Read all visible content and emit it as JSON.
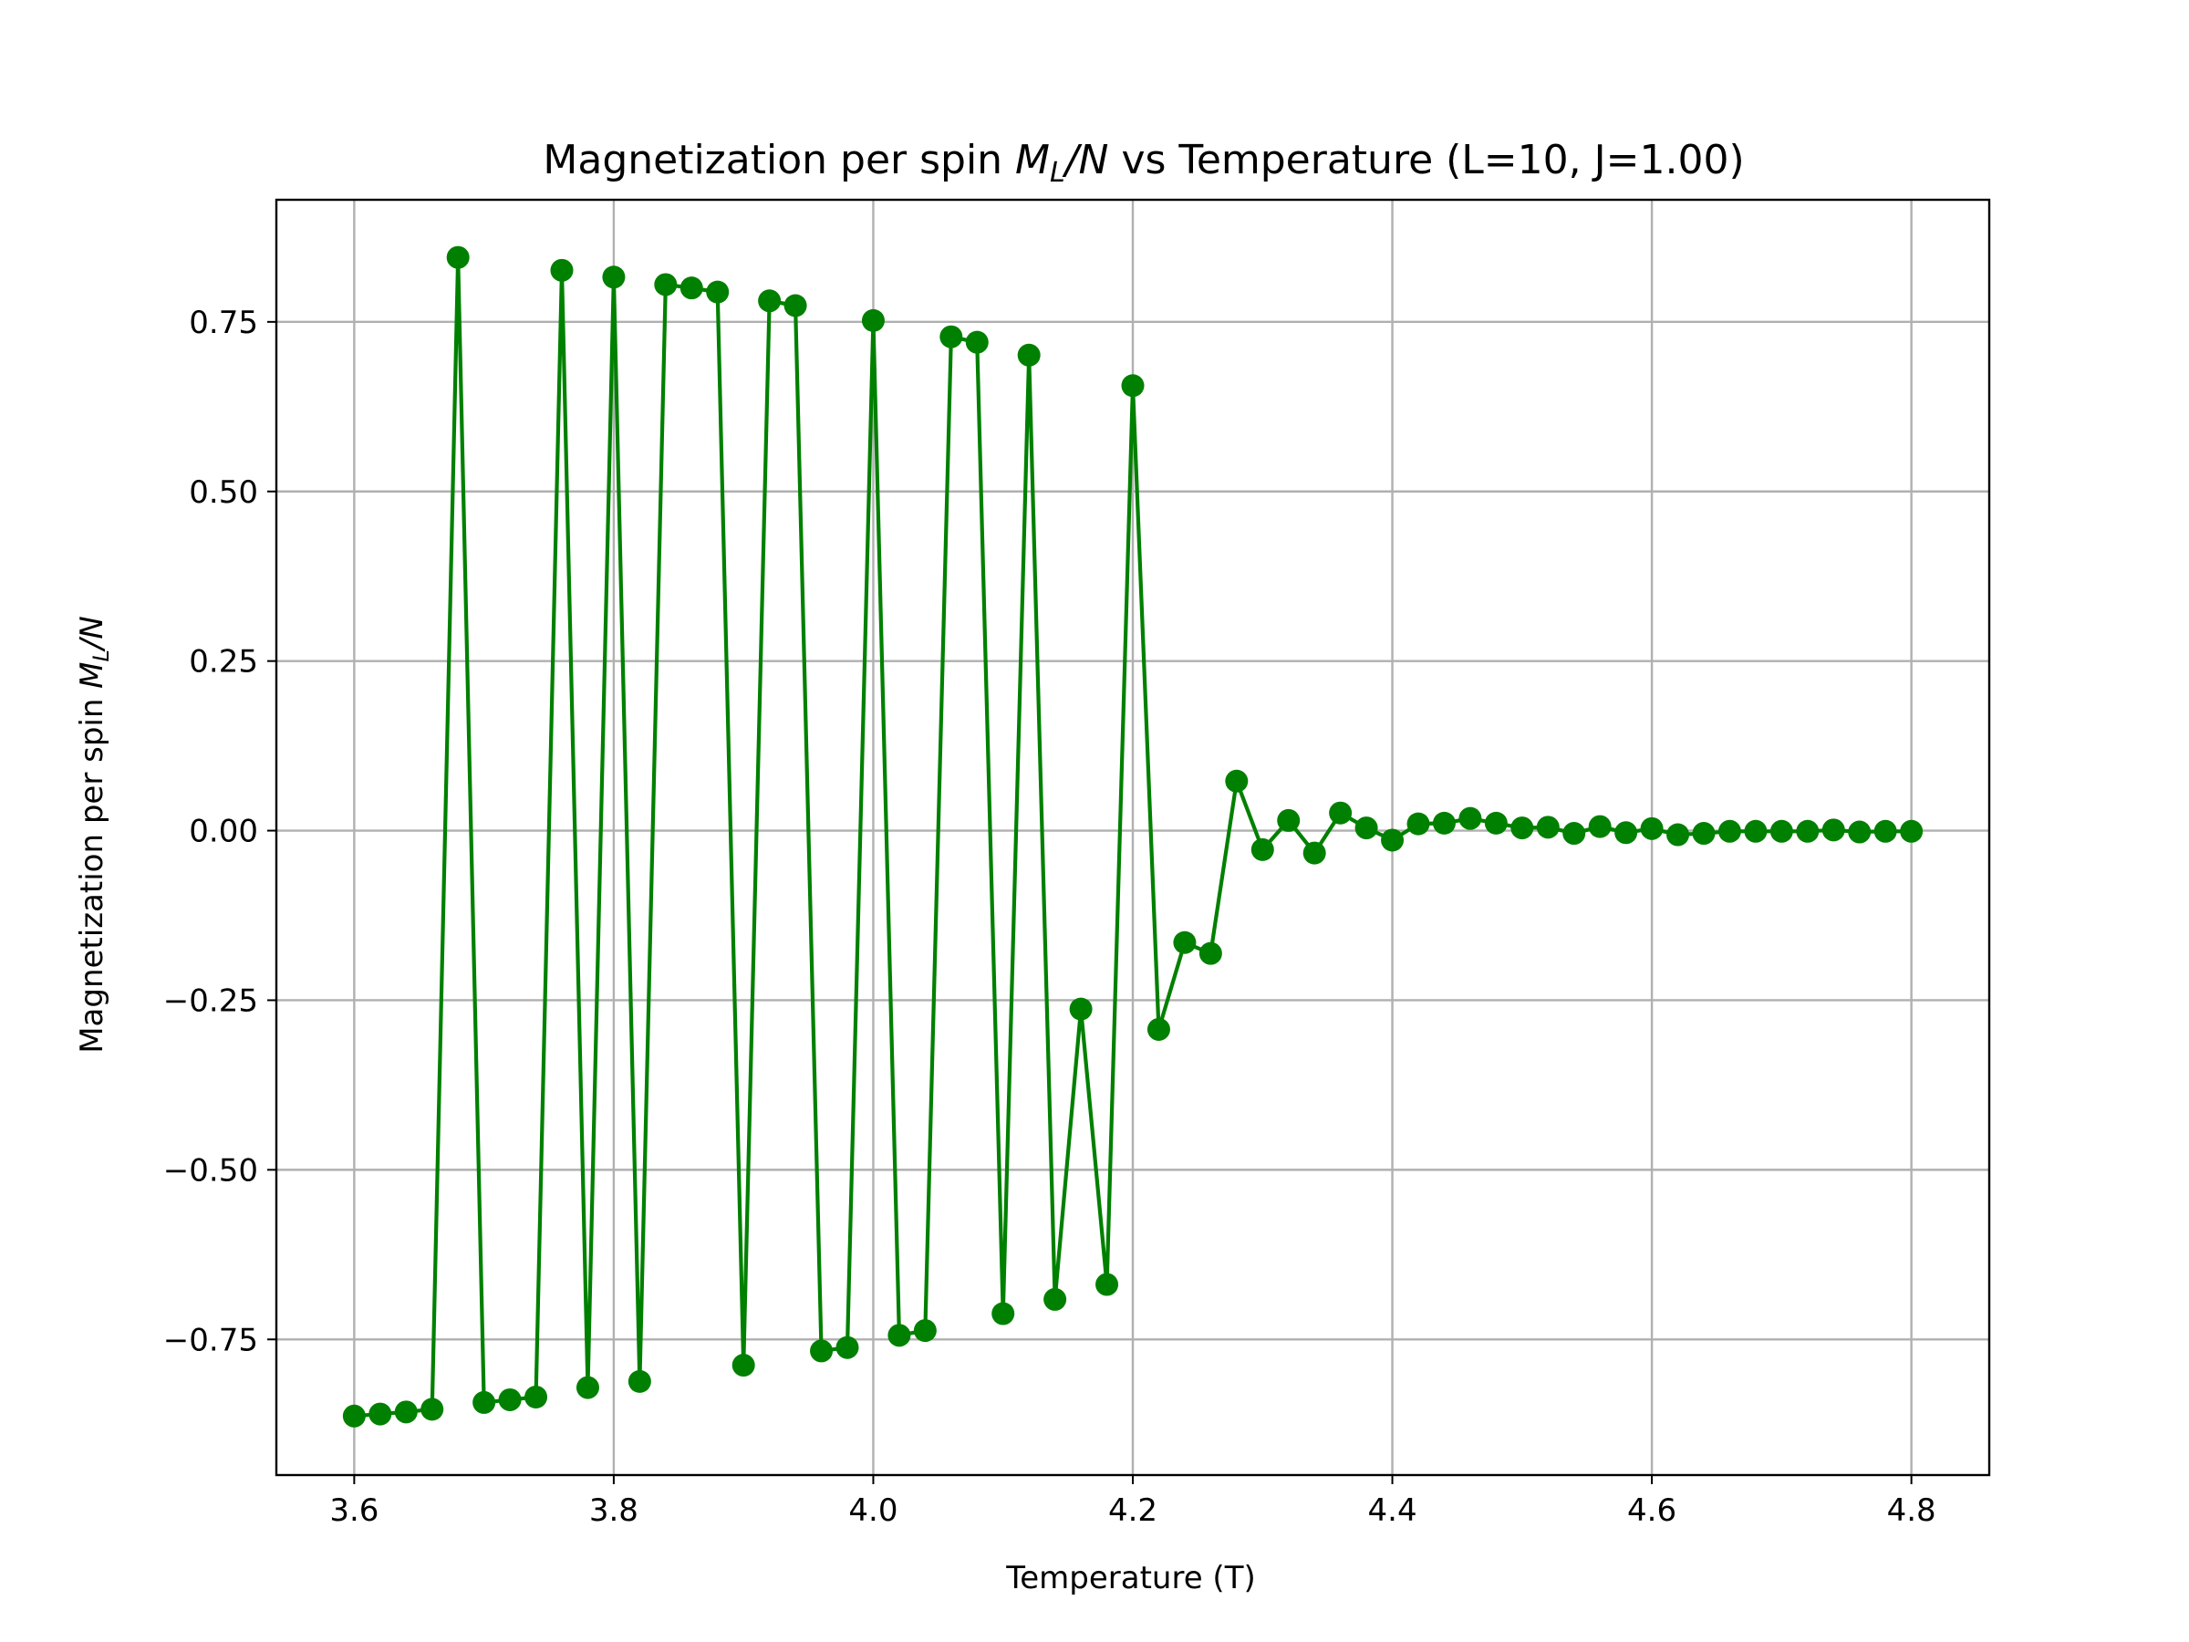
{
  "chart_data": {
    "type": "line",
    "title": "Magnetization per spin M_L/N vs Temperature (L=10, J=1.00)",
    "title_parts": {
      "prefix": "Magnetization per spin ",
      "math_M": "M",
      "math_sub": "L",
      "math_rest": "/N",
      "suffix": " vs Temperature (L=10, J=1.00)"
    },
    "xlabel": "Temperature (T)",
    "ylabel": "Magnetization per spin M_L/N",
    "ylabel_parts": {
      "prefix": "Magnetization per spin ",
      "math_M": "M",
      "math_sub": "L",
      "math_rest": "/N"
    },
    "xlim": [
      3.54,
      4.86
    ],
    "ylim": [
      -0.95,
      0.93
    ],
    "xticks": [
      3.6,
      3.8,
      4.0,
      4.2,
      4.4,
      4.6,
      4.8
    ],
    "xtick_labels": [
      "3.6",
      "3.8",
      "4.0",
      "4.2",
      "4.4",
      "4.6",
      "4.8"
    ],
    "yticks": [
      -0.75,
      -0.5,
      -0.25,
      0.0,
      0.25,
      0.5,
      0.75
    ],
    "ytick_labels": [
      "−0.75",
      "−0.50",
      "−0.25",
      "0.00",
      "0.25",
      "0.50",
      "0.75"
    ],
    "grid": true,
    "color": "#008000",
    "marker": "circle",
    "series": [
      {
        "x": [
          3.6,
          3.62,
          3.64,
          3.66,
          3.68,
          3.7,
          3.72,
          3.74,
          3.76,
          3.78,
          3.8,
          3.82,
          3.84,
          3.86,
          3.88,
          3.9,
          3.92,
          3.94,
          3.96,
          3.98,
          4.0,
          4.02,
          4.04,
          4.06,
          4.08,
          4.1,
          4.12,
          4.14,
          4.16,
          4.18,
          4.2,
          4.22,
          4.24,
          4.26,
          4.28,
          4.3,
          4.32,
          4.34,
          4.36,
          4.38,
          4.4,
          4.42,
          4.44,
          4.46,
          4.48,
          4.5,
          4.52,
          4.54,
          4.56,
          4.58,
          4.6,
          4.62,
          4.64,
          4.66,
          4.68,
          4.7,
          4.72,
          4.74,
          4.76,
          4.78,
          4.8
        ],
        "y": [
          -0.863,
          -0.86,
          -0.857,
          -0.853,
          0.845,
          -0.843,
          -0.839,
          -0.835,
          0.826,
          -0.821,
          0.816,
          -0.812,
          0.805,
          0.8,
          0.794,
          -0.788,
          0.781,
          0.774,
          -0.767,
          -0.762,
          0.752,
          -0.744,
          -0.737,
          0.728,
          0.72,
          -0.712,
          0.701,
          -0.691,
          -0.263,
          -0.669,
          0.656,
          -0.293,
          -0.165,
          -0.181,
          0.073,
          -0.028,
          0.015,
          -0.033,
          0.026,
          0.004,
          -0.014,
          0.01,
          0.011,
          0.018,
          0.011,
          0.004,
          0.005,
          -0.004,
          0.006,
          -0.003,
          0.003,
          -0.006,
          -0.004,
          -0.001,
          -0.001,
          -0.001,
          -0.001,
          0.001,
          -0.002,
          -0.001,
          -0.001
        ]
      }
    ]
  }
}
